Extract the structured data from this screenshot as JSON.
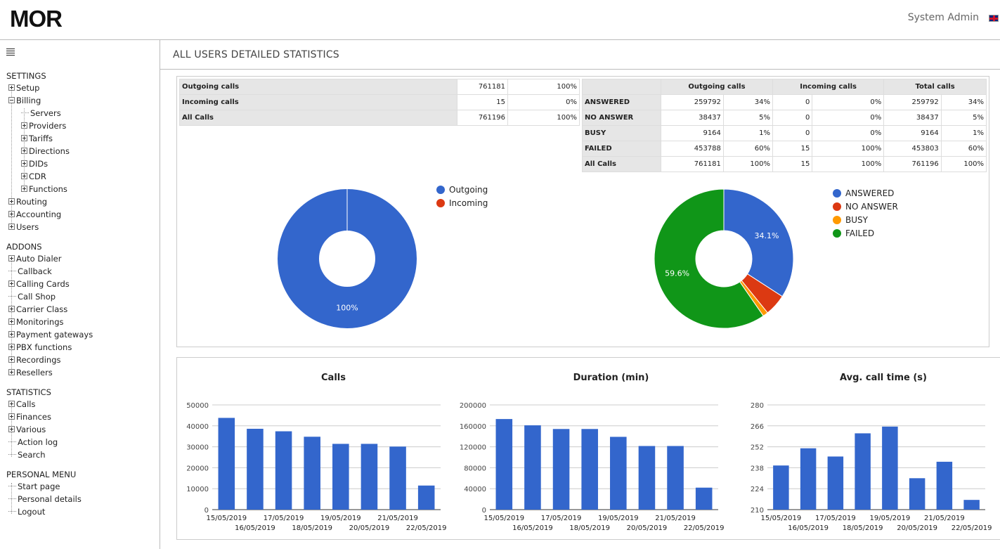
{
  "header": {
    "logo": "MOR",
    "user": "System Admin",
    "flag_icon": "uk-flag-icon"
  },
  "page_title": "ALL USERS DETAILED STATISTICS",
  "sidebar": {
    "sections": [
      {
        "title": "SETTINGS",
        "items": [
          {
            "label": "Setup",
            "type": "plus",
            "level": 0
          },
          {
            "label": "Billing",
            "type": "minus",
            "level": 0
          },
          {
            "label": "Servers",
            "type": "leaf",
            "level": 1
          },
          {
            "label": "Providers",
            "type": "plus",
            "level": 1
          },
          {
            "label": "Tariffs",
            "type": "plus",
            "level": 1
          },
          {
            "label": "Directions",
            "type": "plus",
            "level": 1
          },
          {
            "label": "DIDs",
            "type": "plus",
            "level": 1
          },
          {
            "label": "CDR",
            "type": "plus",
            "level": 1
          },
          {
            "label": "Functions",
            "type": "plus",
            "level": 1
          },
          {
            "label": "Routing",
            "type": "plus",
            "level": 0
          },
          {
            "label": "Accounting",
            "type": "plus",
            "level": 0
          },
          {
            "label": "Users",
            "type": "plus",
            "level": 0
          }
        ]
      },
      {
        "title": "ADDONS",
        "items": [
          {
            "label": "Auto Dialer",
            "type": "plus",
            "level": 0
          },
          {
            "label": "Callback",
            "type": "leaf",
            "level": 0
          },
          {
            "label": "Calling Cards",
            "type": "plus",
            "level": 0
          },
          {
            "label": "Call Shop",
            "type": "leaf",
            "level": 0
          },
          {
            "label": "Carrier Class",
            "type": "plus",
            "level": 0
          },
          {
            "label": "Monitorings",
            "type": "plus",
            "level": 0
          },
          {
            "label": "Payment gateways",
            "type": "plus",
            "level": 0
          },
          {
            "label": "PBX functions",
            "type": "plus",
            "level": 0
          },
          {
            "label": "Recordings",
            "type": "plus",
            "level": 0
          },
          {
            "label": "Resellers",
            "type": "plus",
            "level": 0
          }
        ]
      },
      {
        "title": "STATISTICS",
        "items": [
          {
            "label": "Calls",
            "type": "plus",
            "level": 0
          },
          {
            "label": "Finances",
            "type": "plus",
            "level": 0
          },
          {
            "label": "Various",
            "type": "plus",
            "level": 0
          },
          {
            "label": "Action log",
            "type": "leaf",
            "level": 0
          },
          {
            "label": "Search",
            "type": "leaf",
            "level": 0
          }
        ]
      },
      {
        "title": "PERSONAL MENU",
        "items": [
          {
            "label": "Start page",
            "type": "leaf",
            "level": 0
          },
          {
            "label": "Personal details",
            "type": "leaf",
            "level": 0
          },
          {
            "label": "Logout",
            "type": "leaf",
            "level": 0
          }
        ]
      }
    ]
  },
  "summary_table": {
    "rows": [
      {
        "label": "Outgoing calls",
        "count": "761181",
        "percent": "100%"
      },
      {
        "label": "Incoming calls",
        "count": "15",
        "percent": "0%"
      },
      {
        "label": "All Calls",
        "count": "761196",
        "percent": "100%"
      }
    ]
  },
  "status_table": {
    "headers": [
      "Outgoing calls",
      "Incoming calls",
      "Total calls"
    ],
    "rows": [
      {
        "label": "ANSWERED",
        "values": [
          "259792",
          "34%",
          "0",
          "0%",
          "259792",
          "34%"
        ]
      },
      {
        "label": "NO ANSWER",
        "values": [
          "38437",
          "5%",
          "0",
          "0%",
          "38437",
          "5%"
        ]
      },
      {
        "label": "BUSY",
        "values": [
          "9164",
          "1%",
          "0",
          "0%",
          "9164",
          "1%"
        ]
      },
      {
        "label": "FAILED",
        "values": [
          "453788",
          "60%",
          "15",
          "100%",
          "453803",
          "60%"
        ]
      },
      {
        "label": "All Calls",
        "values": [
          "761181",
          "100%",
          "15",
          "100%",
          "761196",
          "100%"
        ]
      }
    ]
  },
  "colors": {
    "blue": "#3366cc",
    "red": "#dc3912",
    "orange": "#ff9900",
    "green": "#109618"
  },
  "chart_data": [
    {
      "type": "pie",
      "donut": true,
      "slices": [
        {
          "name": "Outgoing",
          "value": 761181,
          "color": "#3366cc"
        },
        {
          "name": "Incoming",
          "value": 15,
          "color": "#dc3912"
        }
      ],
      "slice_labels": [
        "100%",
        ""
      ],
      "legend": "right"
    },
    {
      "type": "pie",
      "donut": true,
      "slices": [
        {
          "name": "ANSWERED",
          "value": 259792,
          "color": "#3366cc"
        },
        {
          "name": "NO ANSWER",
          "value": 38437,
          "color": "#dc3912"
        },
        {
          "name": "BUSY",
          "value": 9164,
          "color": "#ff9900"
        },
        {
          "name": "FAILED",
          "value": 453803,
          "color": "#109618"
        }
      ],
      "slice_labels": [
        "34.1%",
        "",
        "",
        "59.6%"
      ],
      "legend": "right"
    },
    {
      "type": "bar",
      "title": "Calls",
      "categories": [
        "15/05/2019",
        "16/05/2019",
        "17/05/2019",
        "18/05/2019",
        "19/05/2019",
        "20/05/2019",
        "21/05/2019",
        "22/05/2019"
      ],
      "values": [
        43800,
        38600,
        37400,
        34800,
        31400,
        31400,
        30100,
        11500
      ],
      "ylim": [
        0,
        50000
      ],
      "yticks": [
        "0",
        "10000",
        "20000",
        "30000",
        "40000",
        "50000"
      ],
      "color": "#3366cc"
    },
    {
      "type": "bar",
      "title": "Duration (min)",
      "categories": [
        "15/05/2019",
        "16/05/2019",
        "17/05/2019",
        "18/05/2019",
        "19/05/2019",
        "20/05/2019",
        "21/05/2019",
        "22/05/2019"
      ],
      "values": [
        173000,
        161000,
        154000,
        154000,
        139000,
        121500,
        121500,
        42000
      ],
      "ylim": [
        0,
        200000
      ],
      "yticks": [
        "0",
        "40000",
        "80000",
        "120000",
        "160000",
        "200000"
      ],
      "color": "#3366cc"
    },
    {
      "type": "bar",
      "title": "Avg. call time (s)",
      "categories": [
        "15/05/2019",
        "16/05/2019",
        "17/05/2019",
        "18/05/2019",
        "19/05/2019",
        "20/05/2019",
        "21/05/2019",
        "22/05/2019"
      ],
      "values": [
        239.5,
        251,
        245.5,
        261,
        265.5,
        231,
        242,
        216.5
      ],
      "ylim": [
        210,
        280
      ],
      "yticks": [
        "210",
        "224",
        "238",
        "252",
        "266",
        "280"
      ],
      "color": "#3366cc"
    }
  ]
}
